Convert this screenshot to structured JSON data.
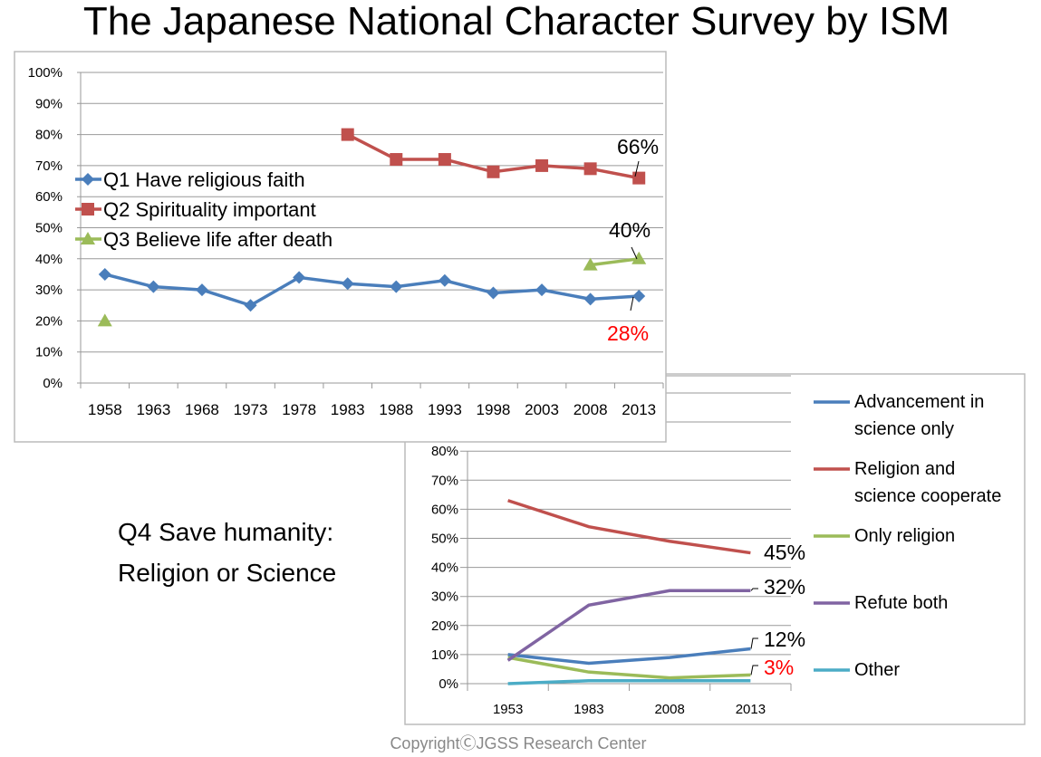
{
  "title": "The Japanese National Character Survey by ISM",
  "copyright": "CopyrightⒸJGSS Research Center",
  "q4_label": [
    "Q4 Save humanity:",
    "Religion or Science"
  ],
  "chart_data": [
    {
      "type": "line",
      "categories": [
        "1958",
        "1963",
        "1968",
        "1973",
        "1978",
        "1983",
        "1988",
        "1993",
        "1998",
        "2003",
        "2008",
        "2013"
      ],
      "ylim": [
        0,
        100
      ],
      "yticks": [
        "0%",
        "10%",
        "20%",
        "30%",
        "40%",
        "50%",
        "60%",
        "70%",
        "80%",
        "90%",
        "100%"
      ],
      "grid": true,
      "legend_position": "center-left",
      "series": [
        {
          "name": "Q1 Have religious faith",
          "color": "#4a7ebb",
          "marker": "diamond",
          "values": [
            35,
            31,
            30,
            25,
            34,
            32,
            31,
            33,
            29,
            30,
            27,
            28
          ]
        },
        {
          "name": "Q2 Spirituality important",
          "color": "#c0504d",
          "marker": "square",
          "values": [
            null,
            null,
            null,
            null,
            null,
            80,
            72,
            72,
            68,
            70,
            69,
            66
          ]
        },
        {
          "name": "Q3 Believe life after death",
          "color": "#9bbb59",
          "marker": "triangle",
          "values": [
            20,
            null,
            null,
            null,
            null,
            null,
            null,
            null,
            null,
            null,
            38,
            40
          ]
        }
      ],
      "annotations": [
        {
          "text": "66%",
          "color": "#000000"
        },
        {
          "text": "40%",
          "color": "#000000"
        },
        {
          "text": "28%",
          "color": "#ff0000"
        }
      ]
    },
    {
      "type": "line",
      "categories": [
        "1953",
        "1983",
        "2008",
        "2013"
      ],
      "ylim": [
        0,
        80
      ],
      "yticks": [
        "0%",
        "10%",
        "20%",
        "30%",
        "40%",
        "50%",
        "60%",
        "70%",
        "80%"
      ],
      "grid": true,
      "legend_position": "right",
      "series": [
        {
          "name": "Advancement in science only",
          "legend_lines": [
            "Advancement in",
            "science only"
          ],
          "color": "#4a7ebb",
          "values": [
            10,
            7,
            9,
            12
          ]
        },
        {
          "name": "Religion and science cooperate",
          "legend_lines": [
            "Religion and",
            "science cooperate"
          ],
          "color": "#c0504d",
          "values": [
            63,
            54,
            49,
            45
          ]
        },
        {
          "name": "Only religion",
          "legend_lines": [
            "Only religion"
          ],
          "color": "#9bbb59",
          "values": [
            9,
            4,
            2,
            3
          ]
        },
        {
          "name": "Refute both",
          "legend_lines": [
            "Refute both"
          ],
          "color": "#8064a2",
          "values": [
            8,
            27,
            32,
            32
          ]
        },
        {
          "name": "Other",
          "legend_lines": [
            "Other"
          ],
          "color": "#4bacc6",
          "values": [
            0,
            1,
            1,
            1
          ]
        }
      ],
      "annotations": [
        {
          "text": "45%",
          "color": "#000000"
        },
        {
          "text": "32%",
          "color": "#000000"
        },
        {
          "text": "12%",
          "color": "#000000"
        },
        {
          "text": "3%",
          "color": "#ff0000"
        }
      ]
    }
  ]
}
